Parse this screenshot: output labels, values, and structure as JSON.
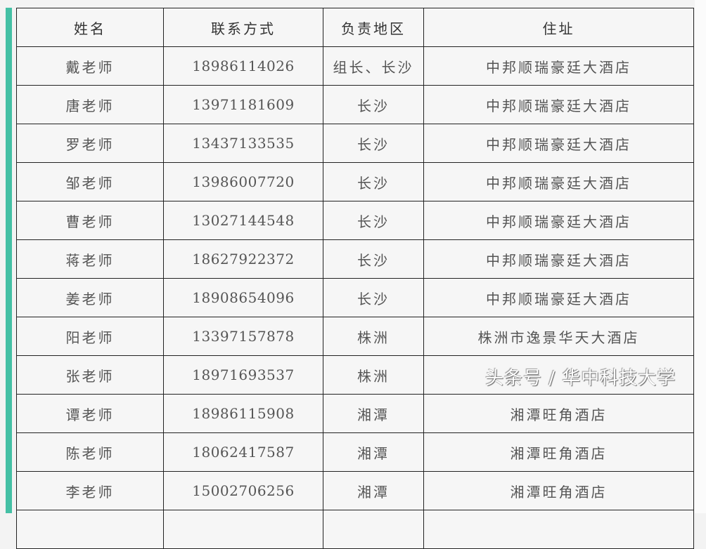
{
  "colors": {
    "accent": "#45c0a5",
    "border": "#222222",
    "cell_bg": "#f6f6f6"
  },
  "table": {
    "headers": [
      "姓名",
      "联系方式",
      "负责地区",
      "住址"
    ],
    "rows": [
      [
        "戴老师",
        "18986114026",
        "组长、长沙",
        "中邦顺瑞豪廷大酒店"
      ],
      [
        "唐老师",
        "13971181609",
        "长沙",
        "中邦顺瑞豪廷大酒店"
      ],
      [
        "罗老师",
        "13437133535",
        "长沙",
        "中邦顺瑞豪廷大酒店"
      ],
      [
        "邹老师",
        "13986007720",
        "长沙",
        "中邦顺瑞豪廷大酒店"
      ],
      [
        "曹老师",
        "13027144548",
        "长沙",
        "中邦顺瑞豪廷大酒店"
      ],
      [
        "蒋老师",
        "18627922372",
        "长沙",
        "中邦顺瑞豪廷大酒店"
      ],
      [
        "姜老师",
        "18908654096",
        "长沙",
        "中邦顺瑞豪廷大酒店"
      ],
      [
        "阳老师",
        "13397157878",
        "株洲",
        "株洲市逸景华天大酒店"
      ],
      [
        "张老师",
        "18971693537",
        "株洲",
        ""
      ],
      [
        "谭老师",
        "18986115908",
        "湘潭",
        "湘潭旺角酒店"
      ],
      [
        "陈老师",
        "18062417587",
        "湘潭",
        "湘潭旺角酒店"
      ],
      [
        "李老师",
        "15002706256",
        "湘潭",
        "湘潭旺角酒店"
      ]
    ]
  },
  "watermark": "头条号 / 华中科技大学"
}
